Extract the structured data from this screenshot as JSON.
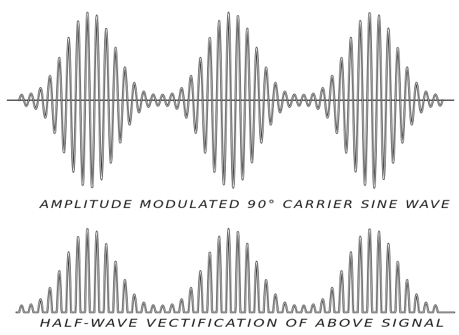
{
  "figure": {
    "top_caption": "AMPLITUDE MODULATED 90° CARRIER SINE WAVE",
    "bottom_caption": "HALF-WAVE VECTIFICATION OF ABOVE SIGNAL"
  },
  "colors": {
    "ink": "#1a1a1a",
    "paper": "#ffffff"
  }
}
